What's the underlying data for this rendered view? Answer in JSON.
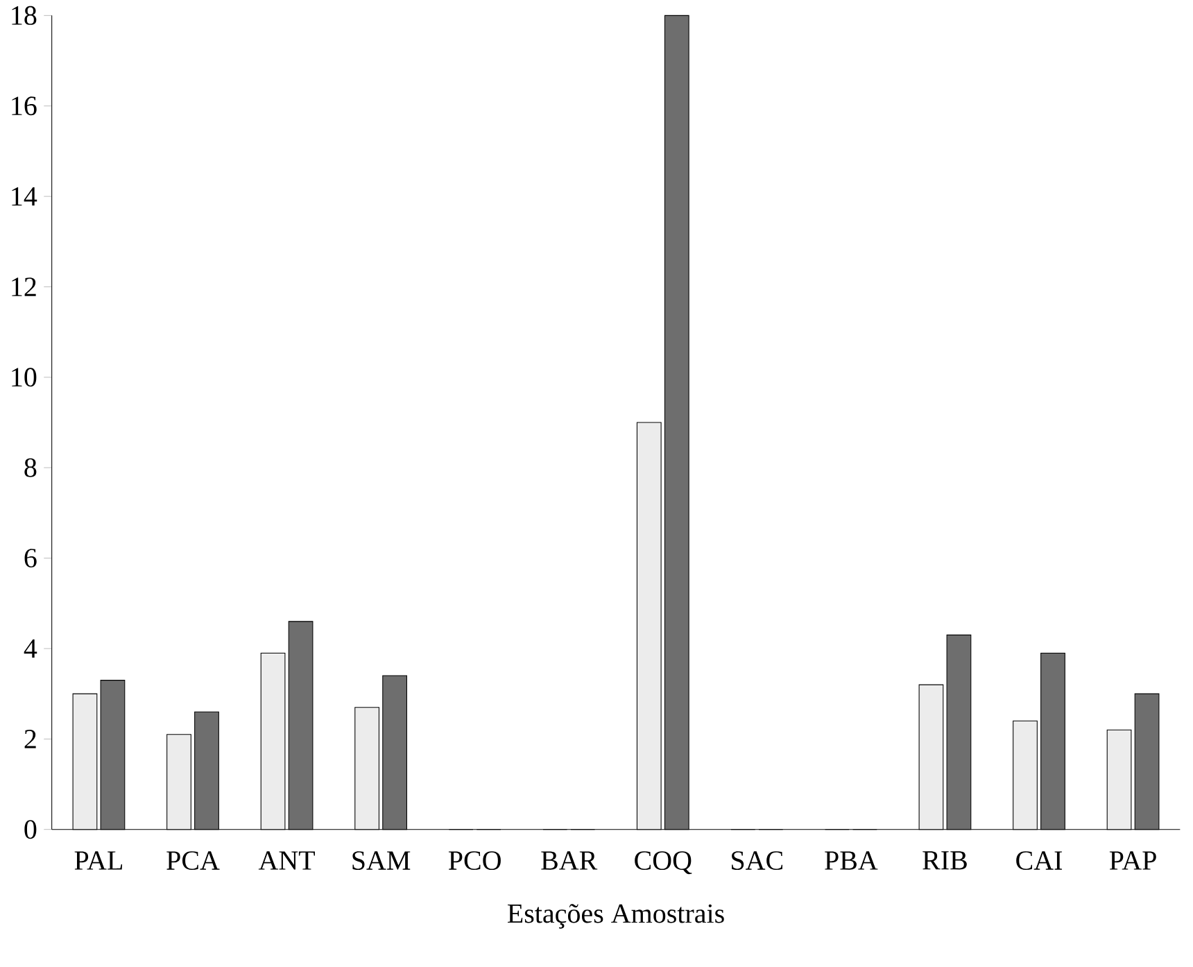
{
  "chart_data": {
    "type": "bar",
    "xlabel": "Estações Amostrais",
    "categories": [
      "PAL",
      "PCA",
      "ANT",
      "SAM",
      "PCO",
      "BAR",
      "COQ",
      "SAC",
      "PBA",
      "RIB",
      "CAI",
      "PAP"
    ],
    "series": [
      {
        "color": "#ececec",
        "values": [
          3.0,
          2.1,
          3.9,
          2.7,
          0,
          0,
          9.0,
          0,
          0,
          3.2,
          2.4,
          2.2
        ]
      },
      {
        "color": "#6e6e6e",
        "values": [
          3.3,
          2.6,
          4.6,
          3.4,
          0,
          0,
          18.0,
          0,
          0,
          4.3,
          3.9,
          3.0
        ]
      }
    ],
    "ylim": [
      0,
      18
    ],
    "yticks": [
      0,
      2,
      4,
      6,
      8,
      10,
      12,
      14,
      16,
      18
    ]
  }
}
